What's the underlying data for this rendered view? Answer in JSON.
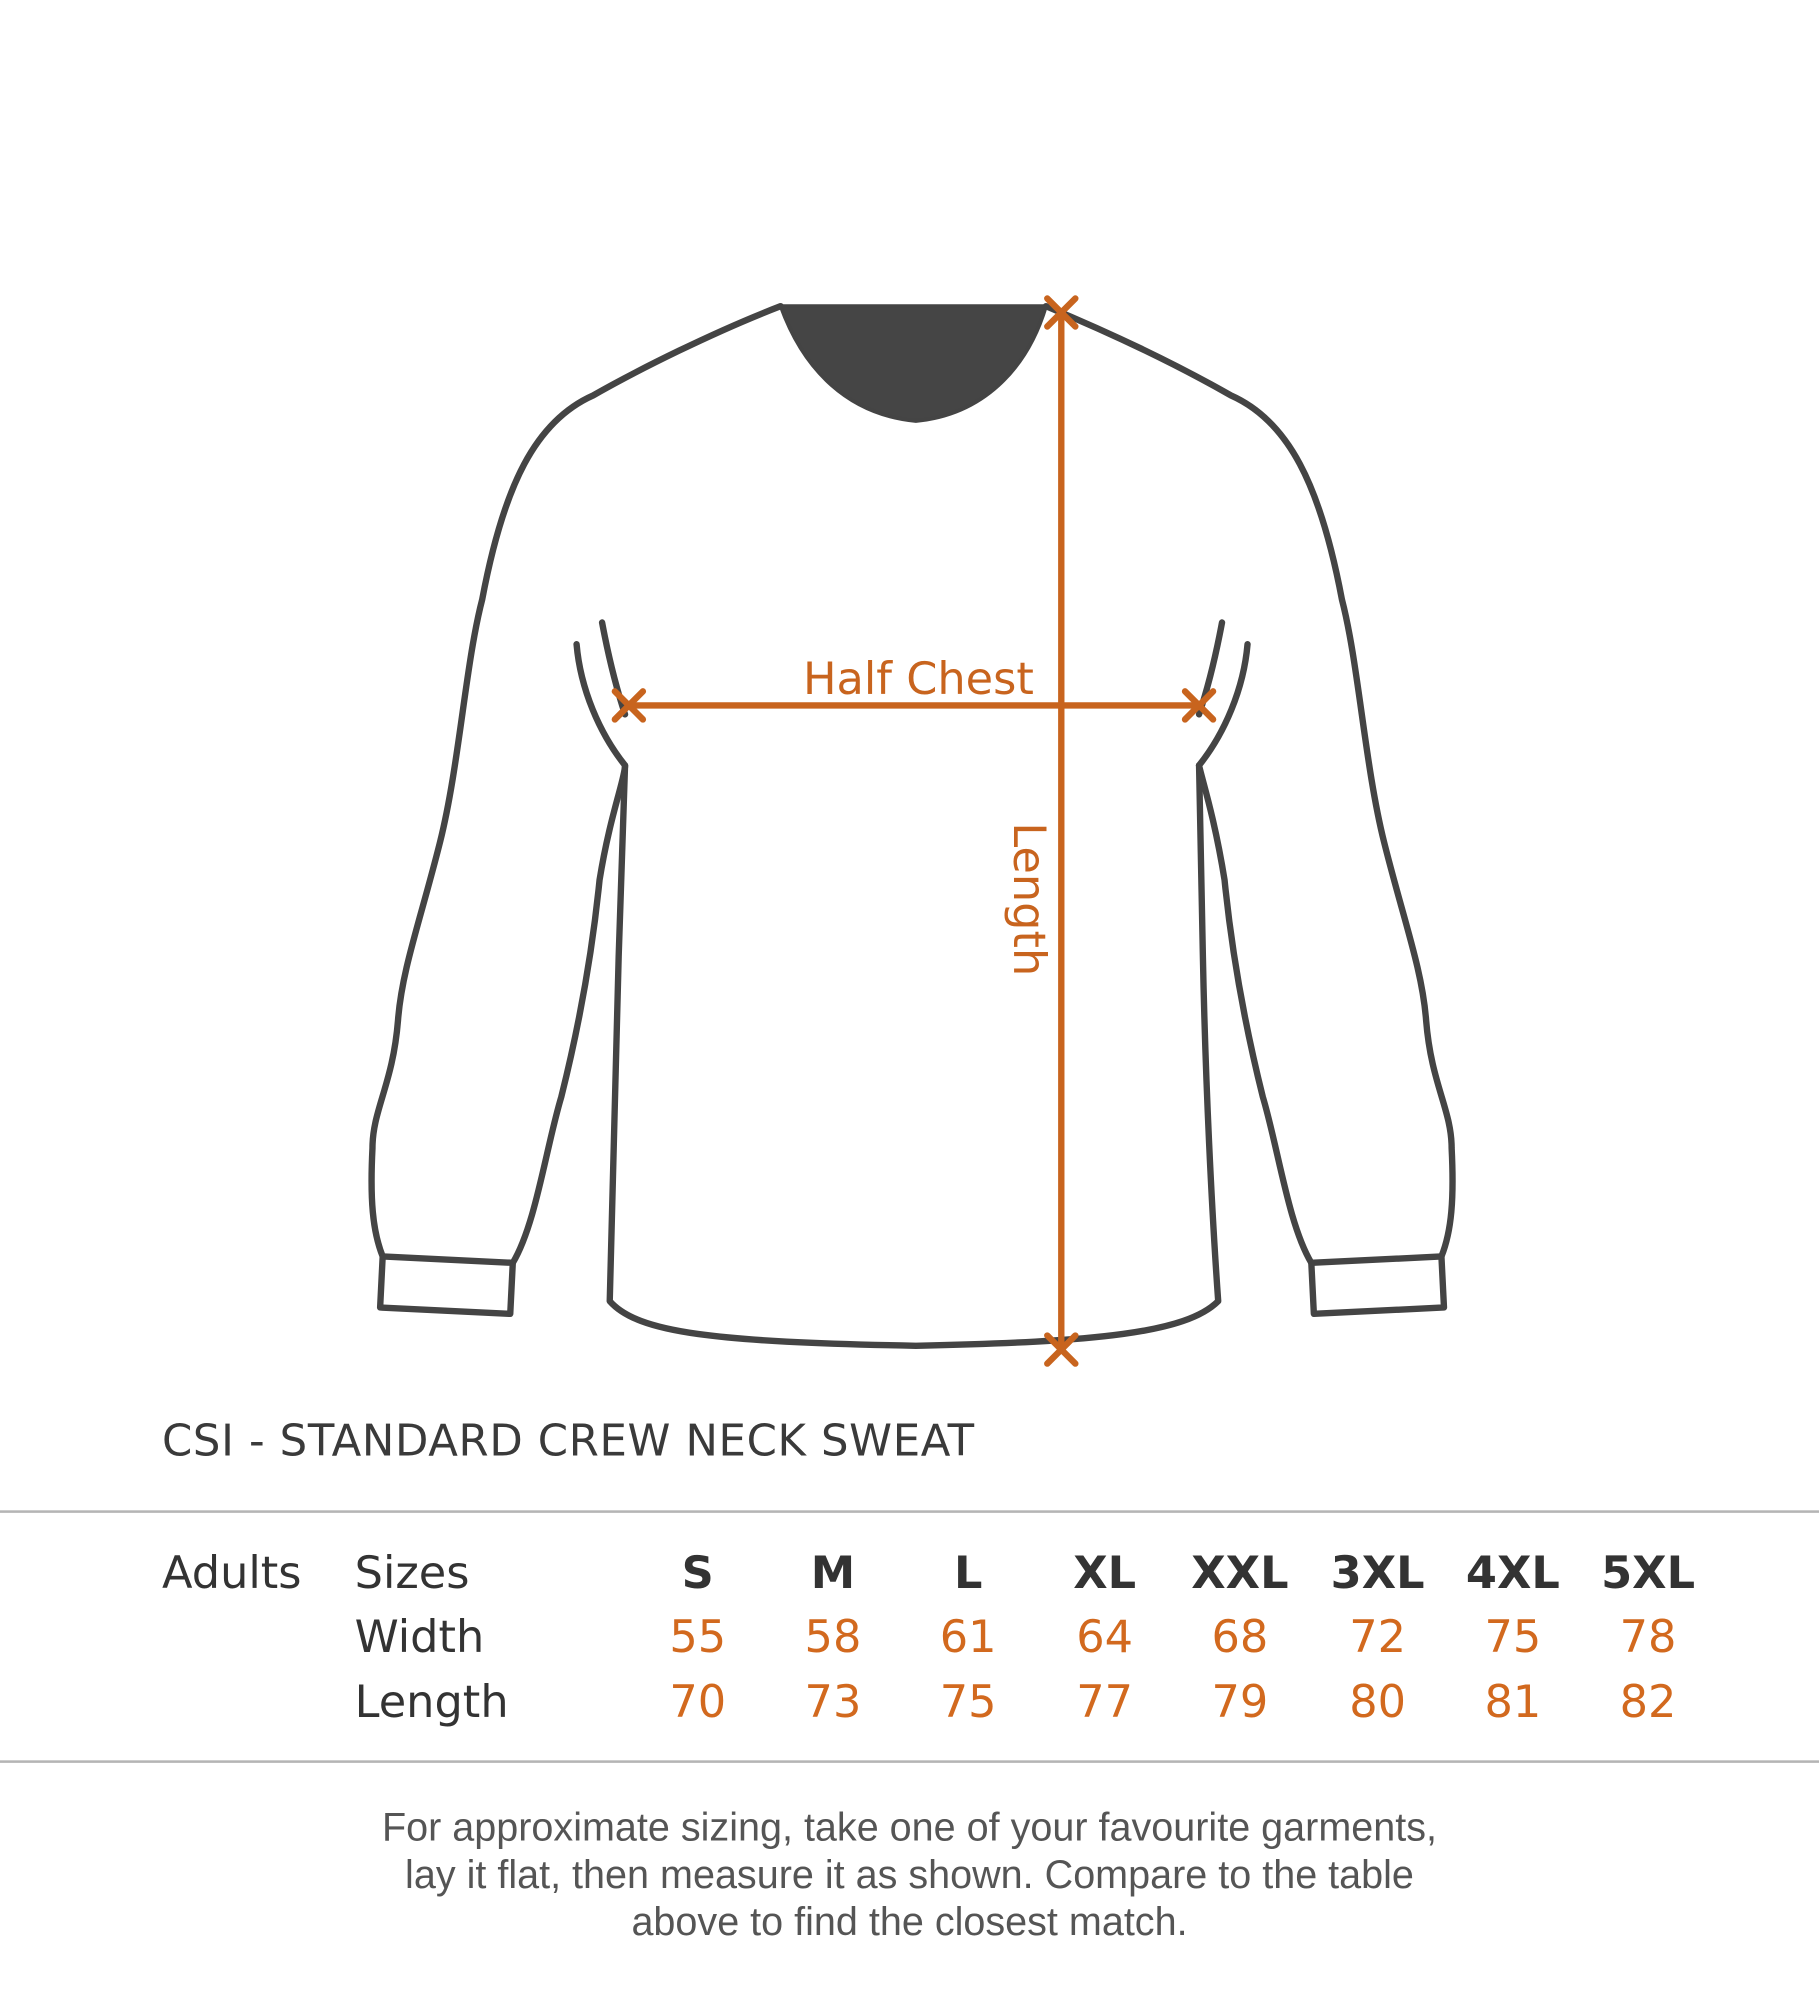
{
  "diagram": {
    "half_chest_label": "Half Chest",
    "length_label": "Length",
    "accent_color": "#c8641e",
    "outline_color": "#444444"
  },
  "title": "CSI - STANDARD CREW NECK SWEAT",
  "table": {
    "group_label": "Adults",
    "row_labels": [
      "Sizes",
      "Width",
      "Length"
    ],
    "sizes": [
      "S",
      "M",
      "L",
      "XL",
      "XXL",
      "3XL",
      "4XL",
      "5XL"
    ],
    "width": [
      "55",
      "58",
      "61",
      "64",
      "68",
      "72",
      "75",
      "78"
    ],
    "length": [
      "70",
      "73",
      "75",
      "77",
      "79",
      "80",
      "81",
      "82"
    ]
  },
  "footer": {
    "lines": [
      "For approximate sizing, take one of your favourite garments,",
      "lay it flat, then measure it as shown. Compare to the table",
      "above to find the closest match."
    ]
  }
}
